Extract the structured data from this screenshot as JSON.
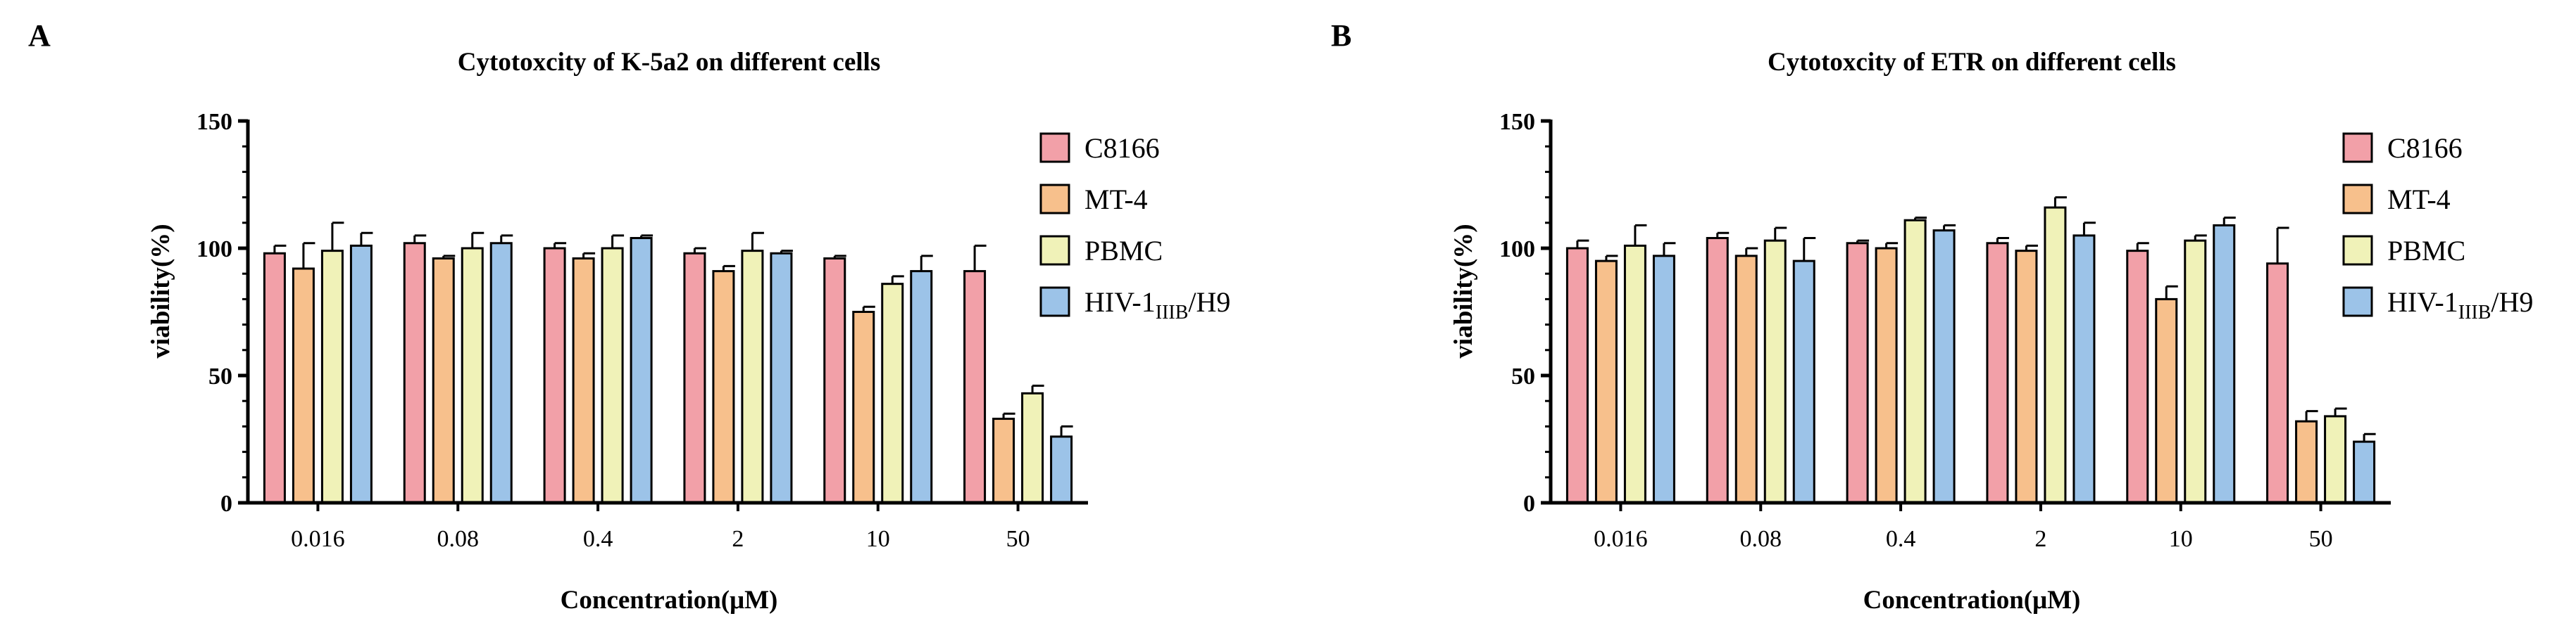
{
  "colors": {
    "C8166": "#f2a0a8",
    "MT-4": "#f7c08c",
    "PBMC": "#f0f2b8",
    "HIV-1": "#9cc3e8",
    "stroke": "#000000"
  },
  "chart_data": [
    {
      "panel": "A",
      "type": "bar",
      "title": "Cytotoxcity of K-5a2 on different cells",
      "xlabel": "Concentration(μM)",
      "ylabel": "viability(%)",
      "ylim": [
        0,
        150
      ],
      "yticks": [
        0,
        50,
        100,
        150
      ],
      "categories": [
        "0.016",
        "0.08",
        "0.4",
        "2",
        "10",
        "50"
      ],
      "legend_position": "top-right",
      "series": [
        {
          "name": "C8166",
          "color_key": "C8166",
          "values": [
            98,
            102,
            100,
            98,
            96,
            91
          ],
          "errors": [
            3,
            3,
            2,
            2,
            1,
            10
          ]
        },
        {
          "name": "MT-4",
          "color_key": "MT-4",
          "values": [
            92,
            96,
            96,
            91,
            75,
            33
          ],
          "errors": [
            10,
            1,
            2,
            2,
            2,
            2
          ]
        },
        {
          "name": "PBMC",
          "color_key": "PBMC",
          "values": [
            99,
            100,
            100,
            99,
            86,
            43
          ],
          "errors": [
            11,
            6,
            5,
            7,
            3,
            3
          ]
        },
        {
          "name": "HIV-1",
          "legend_main": "HIV-1",
          "legend_sub": "IIIB",
          "legend_tail": "/H9",
          "color_key": "HIV-1",
          "values": [
            101,
            102,
            104,
            98,
            91,
            26
          ],
          "errors": [
            5,
            3,
            1,
            1,
            6,
            4
          ]
        }
      ]
    },
    {
      "panel": "B",
      "type": "bar",
      "title": "Cytotoxcity of ETR on different cells",
      "xlabel": "Concentration(μM)",
      "ylabel": "viability(%)",
      "ylim": [
        0,
        150
      ],
      "yticks": [
        0,
        50,
        100,
        150
      ],
      "categories": [
        "0.016",
        "0.08",
        "0.4",
        "2",
        "10",
        "50"
      ],
      "legend_position": "top-right",
      "series": [
        {
          "name": "C8166",
          "color_key": "C8166",
          "values": [
            100,
            104,
            102,
            102,
            99,
            94
          ],
          "errors": [
            3,
            2,
            1,
            2,
            3,
            14
          ]
        },
        {
          "name": "MT-4",
          "color_key": "MT-4",
          "values": [
            95,
            97,
            100,
            99,
            80,
            32
          ],
          "errors": [
            2,
            3,
            2,
            2,
            5,
            4
          ]
        },
        {
          "name": "PBMC",
          "color_key": "PBMC",
          "values": [
            101,
            103,
            111,
            116,
            103,
            34
          ],
          "errors": [
            8,
            5,
            1,
            4,
            2,
            3
          ]
        },
        {
          "name": "HIV-1",
          "legend_main": "HIV-1",
          "legend_sub": "IIIB",
          "legend_tail": "/H9",
          "color_key": "HIV-1",
          "values": [
            97,
            95,
            107,
            105,
            109,
            24
          ],
          "errors": [
            5,
            9,
            2,
            5,
            3,
            3
          ]
        }
      ]
    }
  ]
}
